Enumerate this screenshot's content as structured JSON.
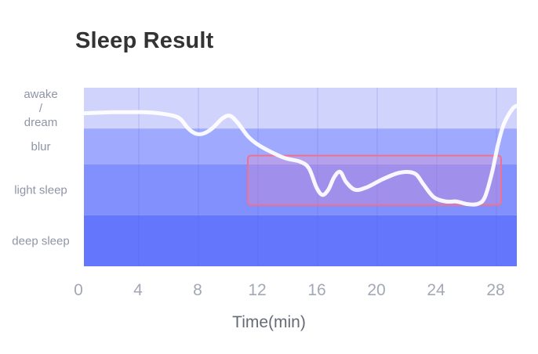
{
  "chart_data": {
    "type": "area",
    "title": "Sleep Result",
    "xlabel": "Time(min)",
    "ylabel": "",
    "xlim": [
      0,
      29.2
    ],
    "xticks": [
      0,
      4,
      8,
      12,
      16,
      20,
      24,
      28
    ],
    "grid": true,
    "bands": [
      {
        "label": "awake / dream",
        "label_lines": [
          "awake",
          "/",
          "dream"
        ],
        "from": 3.2,
        "to": 4.0,
        "color": "#d0d4fd"
      },
      {
        "label": "blur",
        "from": 2.5,
        "to": 3.2,
        "color": "#9fa9fd"
      },
      {
        "label": "light sleep",
        "from": 1.5,
        "to": 2.5,
        "color": "#8190fc"
      },
      {
        "label": "deep sleep",
        "from": 0.5,
        "to": 1.5,
        "color": "#6476fc"
      }
    ],
    "series": [
      {
        "values": [
          [
            0,
            3.5
          ],
          [
            1,
            3.51
          ],
          [
            2,
            3.52
          ],
          [
            3,
            3.52
          ],
          [
            4,
            3.52
          ],
          [
            5,
            3.5
          ],
          [
            6,
            3.45
          ],
          [
            6.5,
            3.38
          ],
          [
            7,
            3.2
          ],
          [
            7.5,
            3.1
          ],
          [
            8,
            3.1
          ],
          [
            8.6,
            3.2
          ],
          [
            9.3,
            3.4
          ],
          [
            9.8,
            3.45
          ],
          [
            10.3,
            3.32
          ],
          [
            11,
            3.05
          ],
          [
            11.6,
            2.9
          ],
          [
            12.5,
            2.75
          ],
          [
            13.5,
            2.62
          ],
          [
            14.5,
            2.55
          ],
          [
            15.1,
            2.42
          ],
          [
            15.6,
            2.05
          ],
          [
            16,
            1.9
          ],
          [
            16.4,
            2.0
          ],
          [
            16.8,
            2.25
          ],
          [
            17.2,
            2.35
          ],
          [
            17.6,
            2.15
          ],
          [
            18.2,
            2.0
          ],
          [
            19,
            2.05
          ],
          [
            20,
            2.2
          ],
          [
            21,
            2.32
          ],
          [
            21.7,
            2.35
          ],
          [
            22.3,
            2.3
          ],
          [
            22.8,
            2.1
          ],
          [
            23.5,
            1.85
          ],
          [
            24.3,
            1.77
          ],
          [
            25,
            1.77
          ],
          [
            25.7,
            1.72
          ],
          [
            26.4,
            1.72
          ],
          [
            26.9,
            1.85
          ],
          [
            27.4,
            2.35
          ],
          [
            27.8,
            2.9
          ],
          [
            28.2,
            3.3
          ],
          [
            28.8,
            3.6
          ],
          [
            29.2,
            3.65
          ]
        ],
        "color": "#ffffff"
      }
    ],
    "annotations": [
      {
        "type": "rect",
        "x": [
          11,
          28
        ],
        "y": [
          1.7,
          2.67
        ],
        "color": "#f07090"
      }
    ]
  }
}
